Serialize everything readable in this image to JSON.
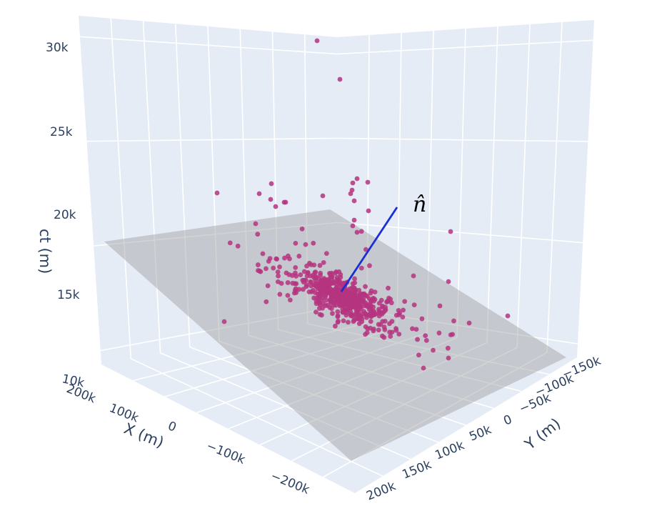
{
  "chart_data": {
    "type": "scatter3d",
    "axes": {
      "x": {
        "label": "X (m)",
        "ticks": [
          "200k",
          "100k",
          "0",
          "−100k",
          "−200k"
        ]
      },
      "y": {
        "label": "Y (m)",
        "ticks": [
          "−150k",
          "−100k",
          "−50k",
          "0",
          "50k",
          "100k",
          "150k",
          "200k"
        ]
      },
      "z": {
        "label": "ct (m)",
        "ticks": [
          "10k",
          "15k",
          "20k",
          "25k",
          "30k"
        ]
      }
    },
    "annotation": "n̂",
    "grid": true,
    "colors": {
      "pane": "#e5ecf6",
      "grid": "#ffffff",
      "points": "#b5347f",
      "plane": "#9e9e9e",
      "normal_vector": "#1a2ed6"
    },
    "plane": {
      "description": "fitted plane",
      "opacity": 0.45
    },
    "normal_vector": {
      "from_center": true
    },
    "outliers": [
      [
        444,
        57
      ],
      [
        476,
        111
      ],
      [
        304,
        270
      ],
      [
        363,
        271
      ],
      [
        380,
        257
      ],
      [
        379,
        279
      ],
      [
        386,
        289
      ],
      [
        398,
        283
      ],
      [
        400,
        283
      ],
      [
        452,
        274
      ],
      [
        494,
        256
      ],
      [
        500,
        250
      ],
      [
        515,
        255
      ],
      [
        491,
        271
      ],
      [
        493,
        266
      ],
      [
        496,
        281
      ],
      [
        516,
        295
      ],
      [
        358,
        313
      ],
      [
        631,
        324
      ],
      [
        314,
        450
      ],
      [
        593,
        515
      ],
      [
        628,
        501
      ],
      [
        711,
        442
      ],
      [
        657,
        452
      ],
      [
        616,
        428
      ],
      [
        628,
        394
      ],
      [
        579,
        386
      ],
      [
        496,
        308
      ],
      [
        500,
        325
      ],
      [
        494,
        316
      ],
      [
        368,
        355
      ]
    ],
    "cluster": {
      "count": 560,
      "center_label": "dense cluster near plane center"
    }
  }
}
